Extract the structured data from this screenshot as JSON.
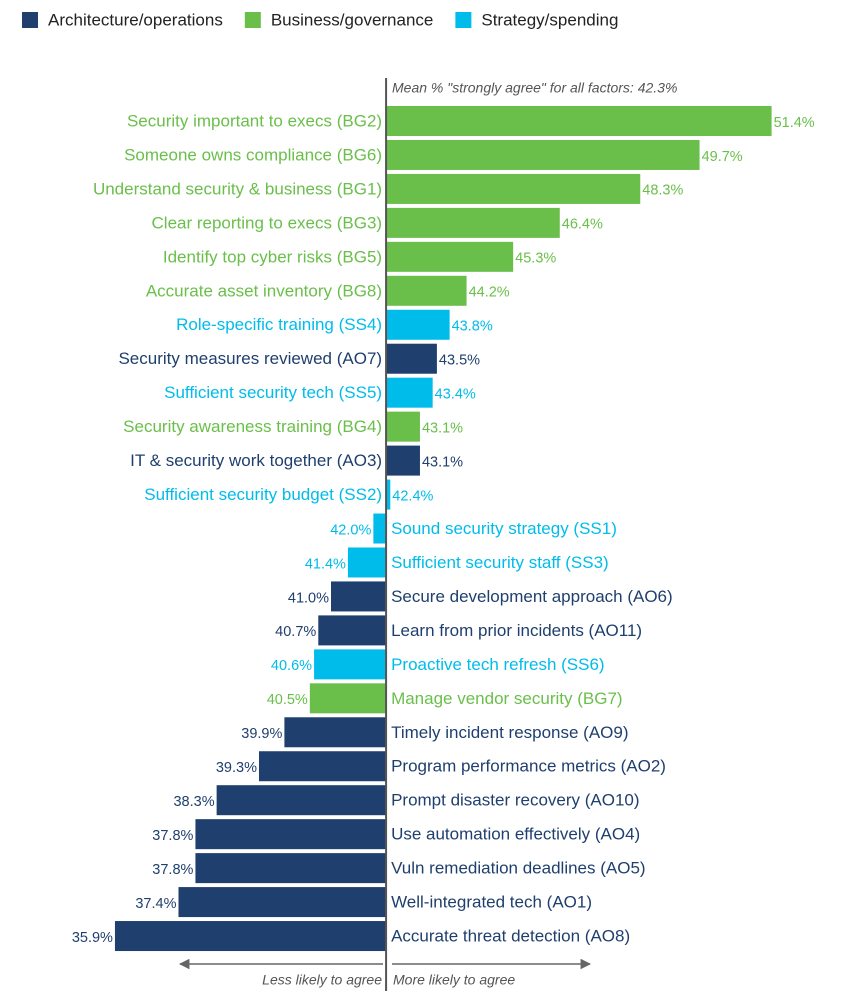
{
  "chart_data": {
    "type": "diverging-bar",
    "orientation": "horizontal",
    "annotation": "Mean % \"strongly agree\" for all factors: 42.3%",
    "baseline": 42.3,
    "left_label": "Less likely to agree",
    "right_label": "More likely to agree",
    "xlim": [
      35.5,
      52
    ],
    "categories": [
      "Security important to execs (BG2)",
      "Someone owns compliance (BG6)",
      "Understand security & business (BG1)",
      "Clear reporting to execs (BG3)",
      "Identify top cyber risks (BG5)",
      "Accurate asset inventory (BG8)",
      "Role-specific training (SS4)",
      "Security measures reviewed (AO7)",
      "Sufficient security tech (SS5)",
      "Security awareness training (BG4)",
      "IT & security work together (AO3)",
      "Sufficient security budget (SS2)",
      "Sound security strategy (SS1)",
      "Sufficient security staff (SS3)",
      "Secure development approach (AO6)",
      "Learn from prior incidents (AO11)",
      "Proactive tech refresh (SS6)",
      "Manage vendor security (BG7)",
      "Timely incident response (AO9)",
      "Program performance metrics (AO2)",
      "Prompt disaster recovery (AO10)",
      "Use automation effectively (AO4)",
      "Vuln remediation deadlines (AO5)",
      "Well-integrated tech (AO1)",
      "Accurate threat detection (AO8)"
    ],
    "series": [
      {
        "name": "Architecture/operations",
        "color": "#1f3f6e",
        "values": [
          null,
          null,
          null,
          null,
          null,
          null,
          null,
          43.5,
          null,
          null,
          43.1,
          null,
          null,
          null,
          41.0,
          40.7,
          null,
          null,
          39.9,
          39.3,
          38.3,
          37.8,
          37.8,
          37.4,
          35.9
        ],
        "value_labels": [
          null,
          null,
          null,
          null,
          null,
          null,
          null,
          "43.5%",
          null,
          null,
          "43.1%",
          null,
          null,
          null,
          "41.0%",
          "40.7%",
          null,
          null,
          "39.9%",
          "39.3%",
          "38.3%",
          "37.8%",
          "37.8%",
          "37.4%",
          "35.9%"
        ]
      },
      {
        "name": "Business/governance",
        "color": "#6abf4b",
        "values": [
          51.4,
          49.7,
          48.3,
          46.4,
          45.3,
          44.2,
          null,
          null,
          null,
          43.1,
          null,
          null,
          null,
          null,
          null,
          null,
          null,
          40.5,
          null,
          null,
          null,
          null,
          null,
          null,
          null
        ],
        "value_labels": [
          "51.4%",
          "49.7%",
          "48.3%",
          "46.4%",
          "45.3%",
          "44.2%",
          null,
          null,
          null,
          "43.1%",
          null,
          null,
          null,
          null,
          null,
          null,
          null,
          "40.5%",
          null,
          null,
          null,
          null,
          null,
          null,
          null
        ]
      },
      {
        "name": "Strategy/spending",
        "color": "#00bceb",
        "values": [
          null,
          null,
          null,
          null,
          null,
          null,
          43.8,
          null,
          43.4,
          null,
          null,
          42.4,
          42.0,
          41.4,
          null,
          null,
          40.6,
          null,
          null,
          null,
          null,
          null,
          null,
          null,
          null
        ],
        "value_labels": [
          null,
          null,
          null,
          null,
          null,
          null,
          "43.8%",
          null,
          "43.4%",
          null,
          null,
          "42.4%",
          "42.0%",
          "41.4%",
          null,
          null,
          "40.6%",
          null,
          null,
          null,
          null,
          null,
          null,
          null,
          null
        ]
      }
    ]
  }
}
